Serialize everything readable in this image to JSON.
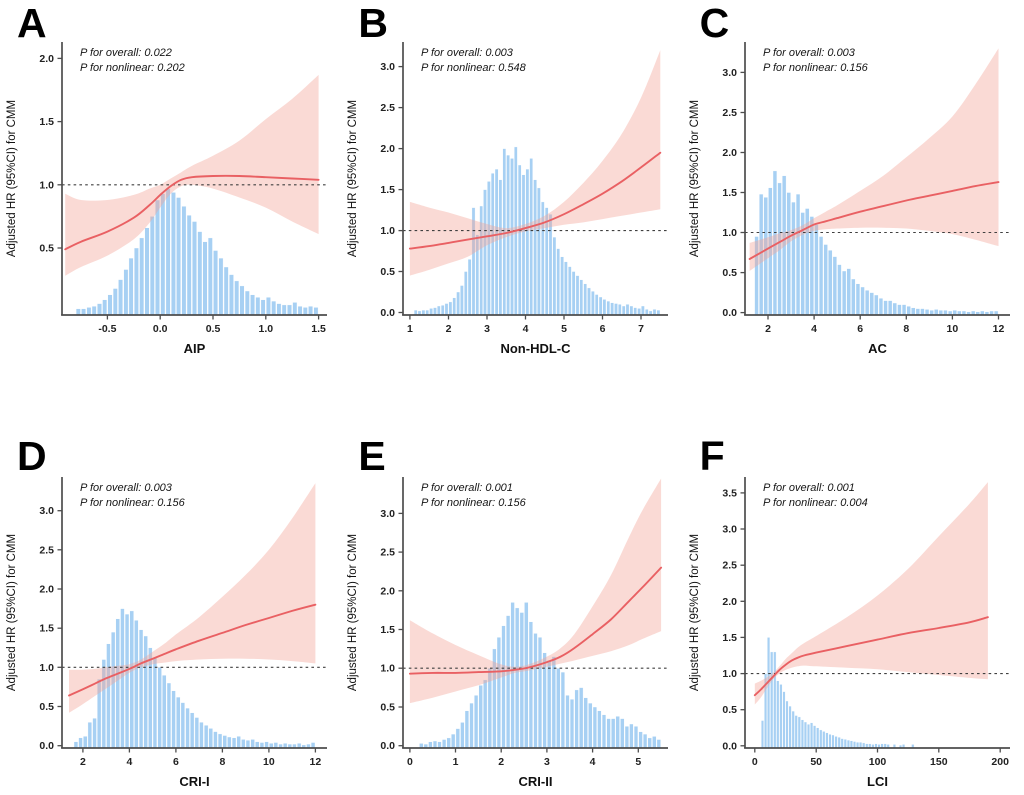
{
  "figure": {
    "y_axis_label": "Adjusted HR (95%CI) for CMM",
    "reference_hr": 1.0,
    "colors": {
      "bar_fill": "#a7d0f3",
      "bar_edge": "#ffffff",
      "band_fill": "#f3a297",
      "band_opacity": 0.4,
      "curve": "#e96063",
      "reference_line": "#404040",
      "axis": "#4d4d4d",
      "text": "#151515"
    }
  },
  "chart_data": [
    {
      "type": "line",
      "panel": "A",
      "xlabel": "AIP",
      "ylabel": "Adjusted HR (95%CI) for CMM",
      "p_overall": "P for overall: 0.022",
      "p_nonlinear": "P for nonlinear: 0.202",
      "xlim": [
        -0.93,
        1.58
      ],
      "ylim": [
        -0.03,
        2.13
      ],
      "xticks": [
        -0.5,
        0.0,
        0.5,
        1.0,
        1.5
      ],
      "xtick_labels": [
        "-0.5",
        "0.0",
        "0.5",
        "1.0",
        "1.5"
      ],
      "yticks": [
        0.5,
        1.0,
        1.5,
        2.0
      ],
      "ytick_labels": [
        "0.5",
        "1.0",
        "1.5",
        "2.0"
      ],
      "reference_line": 1.0,
      "curve": [
        [
          -0.9,
          0.49,
          0.28,
          0.93
        ],
        [
          -0.75,
          0.55,
          0.35,
          0.88
        ],
        [
          -0.5,
          0.63,
          0.44,
          0.88
        ],
        [
          -0.25,
          0.74,
          0.57,
          0.92
        ],
        [
          -0.1,
          0.84,
          0.7,
          0.97
        ],
        [
          0.0,
          0.92,
          0.82,
          1.0
        ],
        [
          0.1,
          0.99,
          0.93,
          1.05
        ],
        [
          0.2,
          1.04,
          0.99,
          1.1
        ],
        [
          0.3,
          1.06,
          1.0,
          1.15
        ],
        [
          0.5,
          1.07,
          0.97,
          1.23
        ],
        [
          0.75,
          1.07,
          0.9,
          1.35
        ],
        [
          1.0,
          1.06,
          0.82,
          1.52
        ],
        [
          1.25,
          1.05,
          0.71,
          1.68
        ],
        [
          1.5,
          1.04,
          0.61,
          1.87
        ]
      ],
      "histogram": {
        "start": -0.8,
        "bin_width": 0.05,
        "heights": [
          0.02,
          0.02,
          0.03,
          0.04,
          0.06,
          0.09,
          0.13,
          0.18,
          0.25,
          0.33,
          0.42,
          0.5,
          0.58,
          0.66,
          0.75,
          0.88,
          0.93,
          0.97,
          0.94,
          0.9,
          0.83,
          0.76,
          0.71,
          0.63,
          0.55,
          0.58,
          0.48,
          0.42,
          0.35,
          0.29,
          0.24,
          0.2,
          0.16,
          0.13,
          0.11,
          0.09,
          0.11,
          0.08,
          0.06,
          0.05,
          0.05,
          0.07,
          0.04,
          0.03,
          0.04,
          0.03
        ]
      }
    },
    {
      "type": "line",
      "panel": "B",
      "xlabel": "Non-HDL-C",
      "ylabel": "Adjusted HR (95%CI) for CMM",
      "p_overall": "P for overall: 0.003",
      "p_nonlinear": "P for nonlinear: 0.548",
      "xlim": [
        0.82,
        7.7
      ],
      "ylim": [
        -0.03,
        3.3
      ],
      "xticks": [
        1,
        2,
        3,
        4,
        5,
        6,
        7
      ],
      "xtick_labels": [
        "1",
        "2",
        "3",
        "4",
        "5",
        "6",
        "7"
      ],
      "yticks": [
        0.0,
        0.5,
        1.0,
        1.5,
        2.0,
        2.5,
        3.0
      ],
      "ytick_labels": [
        "0.0",
        "0.5",
        "1.0",
        "1.5",
        "2.0",
        "2.5",
        "3.0"
      ],
      "reference_line": 1.0,
      "curve": [
        [
          1.0,
          0.78,
          0.45,
          1.35
        ],
        [
          1.5,
          0.81,
          0.52,
          1.28
        ],
        [
          2.0,
          0.85,
          0.6,
          1.22
        ],
        [
          2.5,
          0.89,
          0.68,
          1.15
        ],
        [
          3.0,
          0.93,
          0.82,
          1.08
        ],
        [
          3.5,
          0.97,
          0.92,
          1.03
        ],
        [
          4.0,
          1.03,
          0.99,
          1.08
        ],
        [
          4.5,
          1.1,
          1.03,
          1.18
        ],
        [
          5.0,
          1.2,
          1.07,
          1.35
        ],
        [
          5.5,
          1.32,
          1.1,
          1.58
        ],
        [
          6.0,
          1.45,
          1.14,
          1.85
        ],
        [
          6.5,
          1.6,
          1.18,
          2.18
        ],
        [
          7.0,
          1.77,
          1.22,
          2.62
        ],
        [
          7.5,
          1.95,
          1.26,
          3.2
        ]
      ],
      "histogram": {
        "start": 1.1,
        "bin_width": 0.1,
        "heights": [
          0.03,
          0.02,
          0.03,
          0.03,
          0.05,
          0.06,
          0.08,
          0.09,
          0.11,
          0.13,
          0.18,
          0.25,
          0.33,
          0.5,
          0.65,
          1.28,
          0.95,
          1.3,
          1.5,
          1.6,
          1.7,
          1.75,
          1.62,
          2.0,
          1.92,
          1.88,
          2.02,
          1.8,
          1.68,
          1.75,
          1.88,
          1.62,
          1.52,
          1.35,
          1.28,
          1.2,
          0.92,
          0.78,
          0.68,
          0.62,
          0.56,
          0.5,
          0.45,
          0.4,
          0.35,
          0.3,
          0.26,
          0.22,
          0.19,
          0.16,
          0.14,
          0.12,
          0.11,
          0.1,
          0.08,
          0.1,
          0.08,
          0.06,
          0.05,
          0.08,
          0.04,
          0.02,
          0.04,
          0.03
        ]
      }
    },
    {
      "type": "line",
      "panel": "C",
      "xlabel": "AC",
      "ylabel": "Adjusted HR (95%CI) for CMM",
      "p_overall": "P for overall: 0.003",
      "p_nonlinear": "P for nonlinear: 0.156",
      "xlim": [
        1.0,
        12.5
      ],
      "ylim": [
        -0.03,
        3.38
      ],
      "xticks": [
        2,
        4,
        6,
        8,
        10,
        12
      ],
      "xtick_labels": [
        "2",
        "4",
        "6",
        "8",
        "10",
        "12"
      ],
      "yticks": [
        0.0,
        0.5,
        1.0,
        1.5,
        2.0,
        2.5,
        3.0
      ],
      "ytick_labels": [
        "0.0",
        "0.5",
        "1.0",
        "1.5",
        "2.0",
        "2.5",
        "3.0"
      ],
      "reference_line": 1.0,
      "curve": [
        [
          1.2,
          0.67,
          0.52,
          0.87
        ],
        [
          2.0,
          0.8,
          0.68,
          0.94
        ],
        [
          2.5,
          0.88,
          0.78,
          0.99
        ],
        [
          3.0,
          0.96,
          0.89,
          1.03
        ],
        [
          3.5,
          1.03,
          0.97,
          1.09
        ],
        [
          4.0,
          1.1,
          1.02,
          1.18
        ],
        [
          4.5,
          1.14,
          1.04,
          1.26
        ],
        [
          5.0,
          1.18,
          1.05,
          1.34
        ],
        [
          6.0,
          1.26,
          1.06,
          1.52
        ],
        [
          7.0,
          1.33,
          1.06,
          1.71
        ],
        [
          8.0,
          1.4,
          1.05,
          1.94
        ],
        [
          9.0,
          1.46,
          1.02,
          2.18
        ],
        [
          10.0,
          1.52,
          0.98,
          2.45
        ],
        [
          11.0,
          1.58,
          0.91,
          2.85
        ],
        [
          12.0,
          1.63,
          0.83,
          3.3
        ]
      ],
      "histogram": {
        "start": 1.4,
        "bin_width": 0.2,
        "heights": [
          0.95,
          1.48,
          1.44,
          1.56,
          1.77,
          1.62,
          1.71,
          1.5,
          1.38,
          1.48,
          1.25,
          1.3,
          1.2,
          1.1,
          0.95,
          0.85,
          0.78,
          0.7,
          0.6,
          0.52,
          0.55,
          0.42,
          0.36,
          0.32,
          0.28,
          0.25,
          0.22,
          0.18,
          0.15,
          0.15,
          0.12,
          0.1,
          0.1,
          0.08,
          0.06,
          0.05,
          0.05,
          0.04,
          0.03,
          0.04,
          0.03,
          0.03,
          0.02,
          0.03,
          0.02,
          0.02,
          0.01,
          0.02,
          0.01,
          0.02,
          0.01,
          0.02,
          0.02
        ]
      }
    },
    {
      "type": "line",
      "panel": "D",
      "xlabel": "CRI-I",
      "ylabel": "Adjusted HR (95%CI) for CMM",
      "p_overall": "P for overall: 0.003",
      "p_nonlinear": "P for nonlinear: 0.156",
      "xlim": [
        1.1,
        12.5
      ],
      "ylim": [
        -0.03,
        3.43
      ],
      "xticks": [
        2,
        4,
        6,
        8,
        10,
        12
      ],
      "xtick_labels": [
        "2",
        "4",
        "6",
        "8",
        "10",
        "12"
      ],
      "yticks": [
        0.0,
        0.5,
        1.0,
        1.5,
        2.0,
        2.5,
        3.0
      ],
      "ytick_labels": [
        "0.0",
        "0.5",
        "1.0",
        "1.5",
        "2.0",
        "2.5",
        "3.0"
      ],
      "reference_line": 1.0,
      "curve": [
        [
          1.4,
          0.64,
          0.42,
          0.97
        ],
        [
          2.0,
          0.72,
          0.53,
          0.97
        ],
        [
          2.5,
          0.79,
          0.63,
          0.98
        ],
        [
          3.0,
          0.86,
          0.73,
          1.0
        ],
        [
          3.5,
          0.92,
          0.83,
          1.02
        ],
        [
          4.0,
          0.98,
          0.93,
          1.04
        ],
        [
          4.5,
          1.05,
          1.0,
          1.1
        ],
        [
          5.0,
          1.11,
          1.04,
          1.2
        ],
        [
          5.5,
          1.17,
          1.06,
          1.3
        ],
        [
          6.0,
          1.23,
          1.08,
          1.42
        ],
        [
          7.0,
          1.34,
          1.1,
          1.64
        ],
        [
          8.0,
          1.44,
          1.11,
          1.9
        ],
        [
          9.0,
          1.54,
          1.11,
          2.18
        ],
        [
          10.0,
          1.63,
          1.1,
          2.5
        ],
        [
          11.0,
          1.72,
          1.08,
          2.9
        ],
        [
          12.0,
          1.8,
          1.05,
          3.35
        ]
      ],
      "histogram": {
        "start": 1.6,
        "bin_width": 0.2,
        "heights": [
          0.05,
          0.1,
          0.12,
          0.3,
          0.35,
          0.85,
          1.1,
          1.3,
          1.45,
          1.62,
          1.75,
          1.68,
          1.72,
          1.6,
          1.48,
          1.4,
          1.25,
          1.12,
          1.0,
          0.9,
          0.8,
          0.7,
          0.62,
          0.55,
          0.48,
          0.42,
          0.36,
          0.3,
          0.26,
          0.22,
          0.18,
          0.15,
          0.13,
          0.11,
          0.1,
          0.12,
          0.08,
          0.07,
          0.08,
          0.05,
          0.04,
          0.05,
          0.03,
          0.04,
          0.02,
          0.03,
          0.02,
          0.02,
          0.03,
          0.01,
          0.02,
          0.04
        ]
      }
    },
    {
      "type": "line",
      "panel": "E",
      "xlabel": "CRI-II",
      "ylabel": "Adjusted HR (95%CI) for CMM",
      "p_overall": "P for overall: 0.001",
      "p_nonlinear": "P for nonlinear: 0.156",
      "xlim": [
        -0.15,
        5.65
      ],
      "ylim": [
        -0.03,
        3.47
      ],
      "xticks": [
        0,
        1,
        2,
        3,
        4,
        5
      ],
      "xtick_labels": [
        "0",
        "1",
        "2",
        "3",
        "4",
        "5"
      ],
      "yticks": [
        0.0,
        0.5,
        1.0,
        1.5,
        2.0,
        2.5,
        3.0
      ],
      "ytick_labels": [
        "0.0",
        "0.5",
        "1.0",
        "1.5",
        "2.0",
        "2.5",
        "3.0"
      ],
      "reference_line": 1.0,
      "curve": [
        [
          0.0,
          0.93,
          0.55,
          1.62
        ],
        [
          0.5,
          0.94,
          0.62,
          1.45
        ],
        [
          1.0,
          0.94,
          0.7,
          1.3
        ],
        [
          1.5,
          0.95,
          0.78,
          1.17
        ],
        [
          2.0,
          0.96,
          0.88,
          1.05
        ],
        [
          2.3,
          0.98,
          0.94,
          1.02
        ],
        [
          2.6,
          1.01,
          0.97,
          1.05
        ],
        [
          3.0,
          1.08,
          1.02,
          1.15
        ],
        [
          3.3,
          1.15,
          1.06,
          1.26
        ],
        [
          3.6,
          1.26,
          1.1,
          1.44
        ],
        [
          4.0,
          1.44,
          1.16,
          1.8
        ],
        [
          4.4,
          1.63,
          1.22,
          2.2
        ],
        [
          4.8,
          1.87,
          1.3,
          2.7
        ],
        [
          5.1,
          2.05,
          1.38,
          3.05
        ],
        [
          5.5,
          2.3,
          1.48,
          3.45
        ]
      ],
      "histogram": {
        "start": 0.2,
        "bin_width": 0.1,
        "heights": [
          0.03,
          0.02,
          0.05,
          0.06,
          0.05,
          0.08,
          0.1,
          0.15,
          0.22,
          0.3,
          0.45,
          0.55,
          0.65,
          0.78,
          0.85,
          1.0,
          1.25,
          1.4,
          1.55,
          1.68,
          1.85,
          1.78,
          1.72,
          1.85,
          1.6,
          1.45,
          1.4,
          1.2,
          1.1,
          1.15,
          1.0,
          0.95,
          0.65,
          0.6,
          0.72,
          0.75,
          0.62,
          0.55,
          0.5,
          0.45,
          0.4,
          0.35,
          0.35,
          0.38,
          0.35,
          0.25,
          0.28,
          0.25,
          0.18,
          0.15,
          0.1,
          0.12,
          0.08
        ]
      }
    },
    {
      "type": "line",
      "panel": "F",
      "xlabel": "LCI",
      "ylabel": "Adjusted HR (95%CI) for CMM",
      "p_overall": "P for overall: 0.001",
      "p_nonlinear": "P for nonlinear: 0.004",
      "xlim": [
        -8,
        208
      ],
      "ylim": [
        -0.03,
        3.72
      ],
      "xticks": [
        0,
        50,
        100,
        150,
        200
      ],
      "xtick_labels": [
        "0",
        "50",
        "100",
        "150",
        "200"
      ],
      "yticks": [
        0.0,
        0.5,
        1.0,
        1.5,
        2.0,
        2.5,
        3.0,
        3.5
      ],
      "ytick_labels": [
        "0.0",
        "0.5",
        "1.0",
        "1.5",
        "2.0",
        "2.5",
        "3.0",
        "3.5"
      ],
      "reference_line": 1.0,
      "curve": [
        [
          0,
          0.7,
          0.57,
          0.86
        ],
        [
          5,
          0.78,
          0.67,
          0.9
        ],
        [
          10,
          0.87,
          0.8,
          0.95
        ],
        [
          15,
          0.96,
          0.92,
          1.01
        ],
        [
          20,
          1.05,
          1.0,
          1.1
        ],
        [
          25,
          1.12,
          1.05,
          1.2
        ],
        [
          30,
          1.18,
          1.08,
          1.28
        ],
        [
          35,
          1.22,
          1.1,
          1.36
        ],
        [
          40,
          1.25,
          1.11,
          1.42
        ],
        [
          50,
          1.29,
          1.1,
          1.52
        ],
        [
          75,
          1.38,
          1.08,
          1.78
        ],
        [
          100,
          1.47,
          1.06,
          2.08
        ],
        [
          125,
          1.56,
          1.02,
          2.45
        ],
        [
          150,
          1.63,
          0.98,
          2.9
        ],
        [
          175,
          1.71,
          0.94,
          3.35
        ],
        [
          190,
          1.78,
          0.92,
          3.65
        ]
      ],
      "histogram": {
        "start": 5,
        "bin_width": 2.5,
        "heights": [
          0.35,
          1.0,
          1.5,
          1.3,
          1.3,
          0.9,
          0.85,
          0.75,
          0.62,
          0.55,
          0.48,
          0.42,
          0.4,
          0.36,
          0.33,
          0.3,
          0.32,
          0.28,
          0.25,
          0.22,
          0.2,
          0.18,
          0.16,
          0.15,
          0.13,
          0.12,
          0.1,
          0.09,
          0.08,
          0.07,
          0.06,
          0.05,
          0.05,
          0.04,
          0.03,
          0.03,
          0.02,
          0.03,
          0.02,
          0.03,
          0.03,
          0.02,
          0,
          0.02,
          0,
          0.01,
          0.02,
          0,
          0,
          0.02
        ]
      }
    }
  ]
}
